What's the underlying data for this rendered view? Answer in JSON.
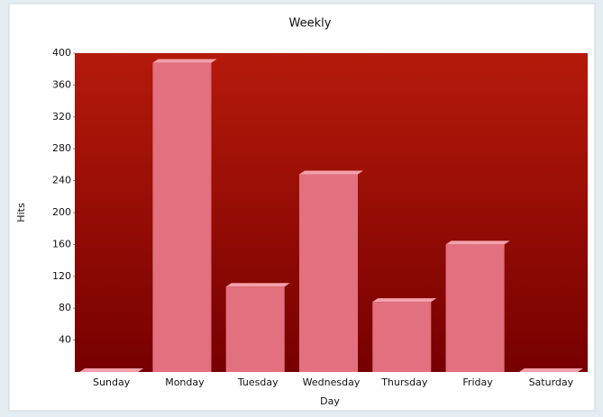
{
  "chart_data": {
    "type": "bar",
    "title": "Weekly",
    "x_label": "Day",
    "y_label": "Hits",
    "categories": [
      "Sunday",
      "Monday",
      "Tuesday",
      "Wednesday",
      "Thursday",
      "Friday",
      "Saturday"
    ],
    "values": [
      0,
      388,
      107,
      248,
      88,
      160,
      0
    ],
    "color": "#e2707e",
    "ylim": [
      0,
      400
    ],
    "yticks": [
      40,
      80,
      120,
      160,
      200,
      240,
      280,
      320,
      360,
      400
    ],
    "grid": false
  }
}
